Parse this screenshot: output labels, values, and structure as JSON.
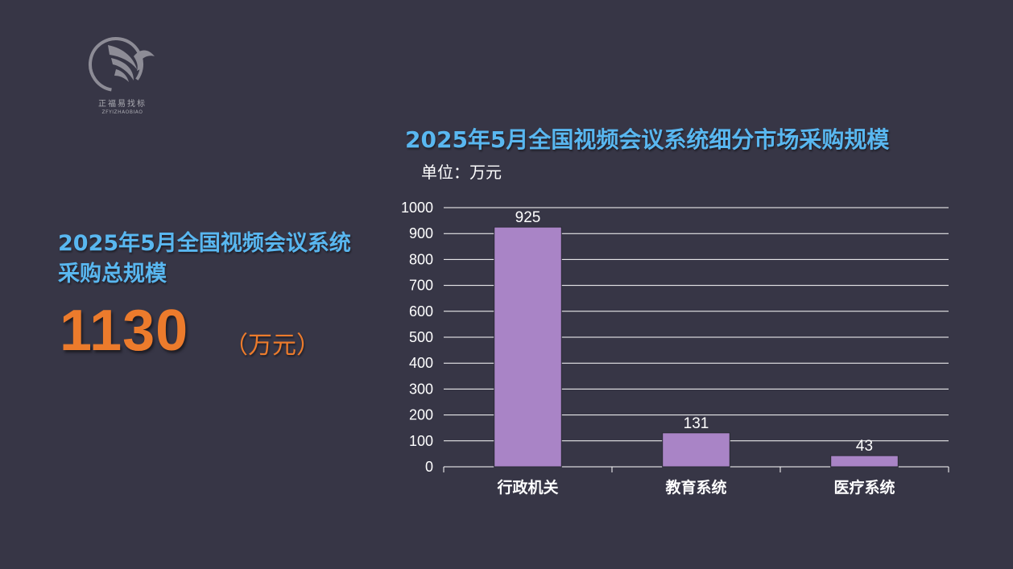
{
  "logo": {
    "name_cn": "正福易找标",
    "name_en": "ZFYIZHAOBIAO",
    "icon": "eagle-circle-logo"
  },
  "summary": {
    "title": "2025年5月全国视频会议系统采购总规模",
    "value": "1130",
    "unit": "（万元）"
  },
  "colors": {
    "background": "#373646",
    "title": "#59b7f0",
    "highlight": "#ec7b2c",
    "bar": "#a984c6"
  },
  "chart_data": {
    "type": "bar",
    "title": "2025年5月全国视频会议系统细分市场采购规模",
    "subtitle": "单位：万元",
    "categories": [
      "行政机关",
      "教育系统",
      "医疗系统"
    ],
    "values": [
      925,
      131,
      43
    ],
    "data_labels": [
      "925",
      "131",
      "43"
    ],
    "ylim": [
      0,
      1000
    ],
    "yticks": [
      0,
      100,
      200,
      300,
      400,
      500,
      600,
      700,
      800,
      900,
      1000
    ],
    "grid": true,
    "legend": "none"
  }
}
